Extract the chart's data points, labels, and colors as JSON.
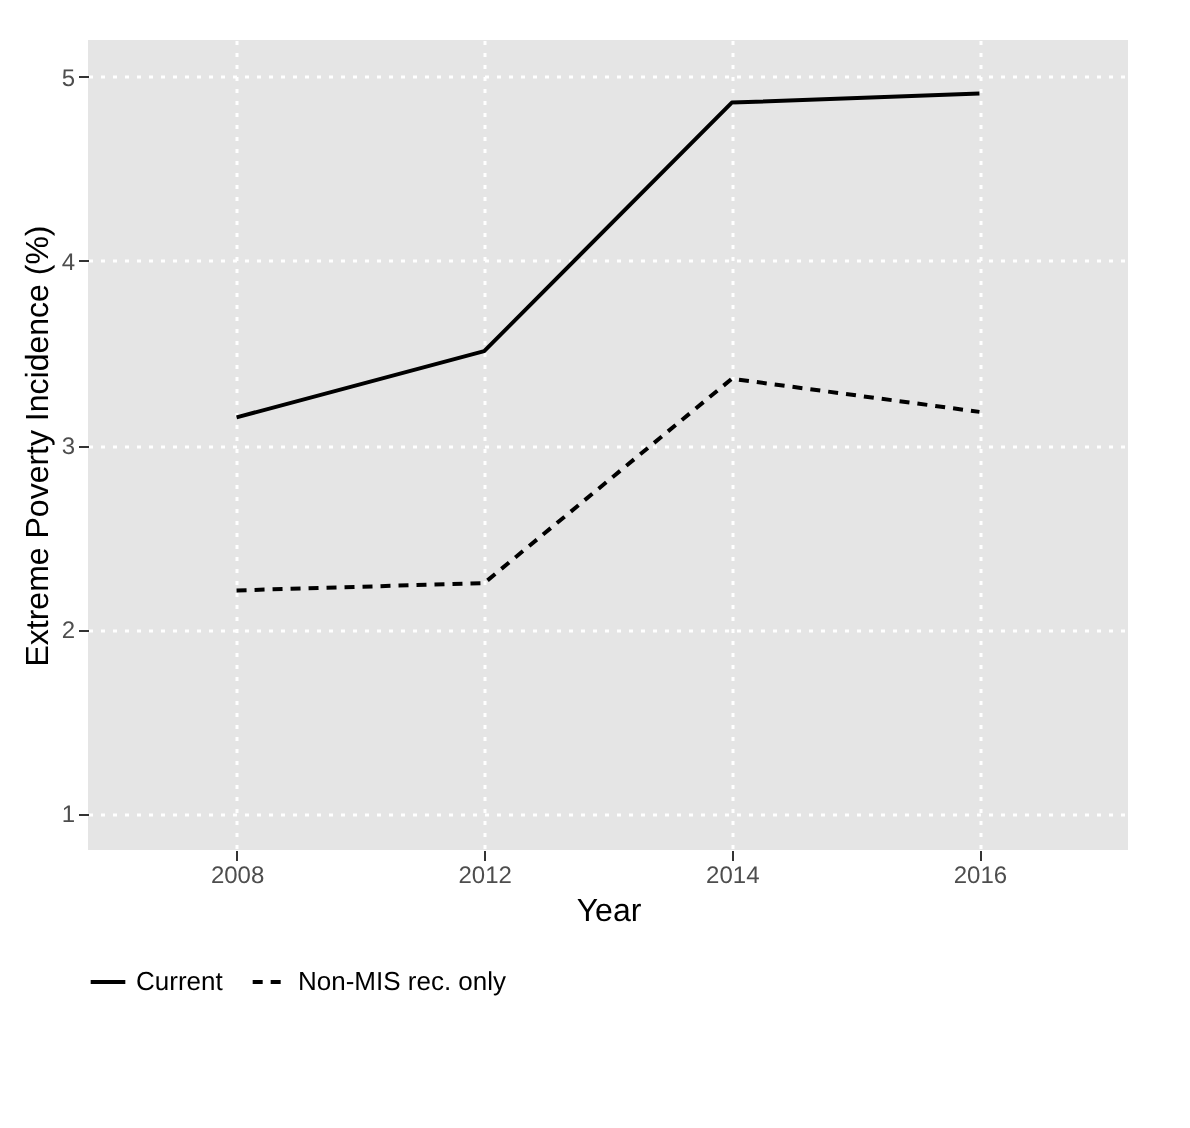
{
  "chart_data": {
    "type": "line",
    "xlabel": "Year",
    "ylabel": "Extreme Poverty Incidence (%)",
    "categories": [
      "2008",
      "2012",
      "2014",
      "2016"
    ],
    "series": [
      {
        "name": "Current",
        "color": "#000000",
        "line_style": "solid",
        "values": [
          3.15,
          3.51,
          4.86,
          4.91
        ]
      },
      {
        "name": "Non-MIS rec. only",
        "color": "#000000",
        "line_style": "dashed",
        "values": [
          2.21,
          2.25,
          3.36,
          3.18
        ]
      }
    ],
    "ylim": [
      0.8,
      5.2
    ],
    "yticks": [
      1,
      2,
      3,
      4,
      5
    ],
    "grid": true,
    "legend": "bottom",
    "marker": "none"
  }
}
